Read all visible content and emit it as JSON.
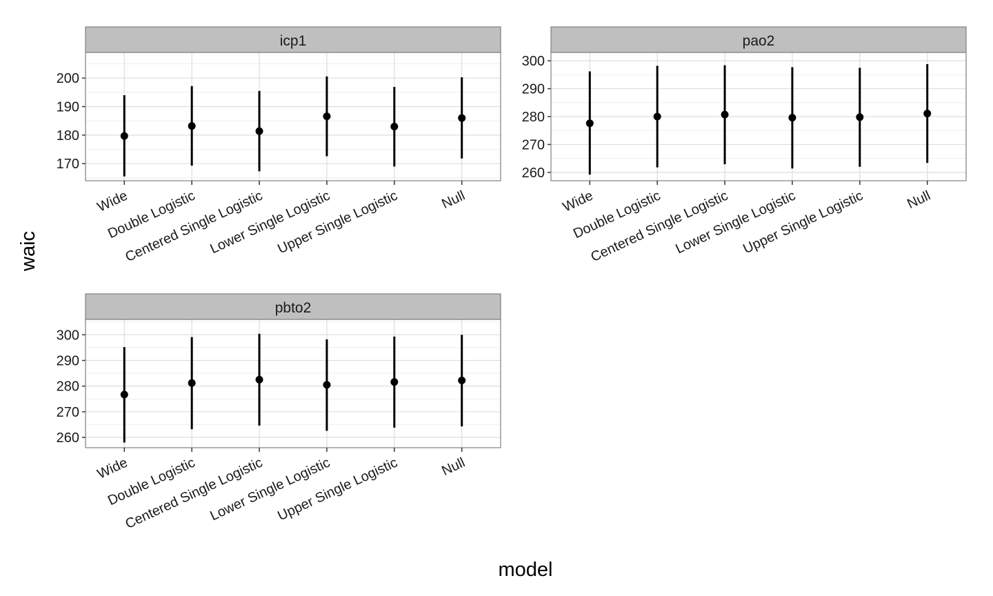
{
  "colors": {
    "panel_background": "#ffffff",
    "grid_major": "#dddddd",
    "grid_minor": "#eeeeee",
    "panel_border": "#7f7f7f",
    "strip_background": "#bfbfbf",
    "point": "#000000"
  },
  "chart_data": {
    "type": "scatter",
    "geometry": "point-range",
    "xlabel": "model",
    "ylabel": "waic",
    "categories": [
      "Wide",
      "Double Logistic",
      "Centered Single Logistic",
      "Lower Single Logistic",
      "Upper Single Logistic",
      "Null"
    ],
    "grid": true,
    "legend": "none",
    "panels": [
      {
        "name": "icp1",
        "ylim": [
          164,
          209
        ],
        "yticks": [
          170,
          180,
          190,
          200
        ],
        "points": [
          {
            "category": "Wide",
            "y": 179.7,
            "lower": 165.5,
            "upper": 194.0
          },
          {
            "category": "Double Logistic",
            "y": 183.2,
            "lower": 169.3,
            "upper": 197.2
          },
          {
            "category": "Centered Single Logistic",
            "y": 181.4,
            "lower": 167.3,
            "upper": 195.5
          },
          {
            "category": "Lower Single Logistic",
            "y": 186.6,
            "lower": 172.6,
            "upper": 200.6
          },
          {
            "category": "Upper Single Logistic",
            "y": 183.0,
            "lower": 169.0,
            "upper": 196.9
          },
          {
            "category": "Null",
            "y": 186.0,
            "lower": 171.8,
            "upper": 200.3
          }
        ]
      },
      {
        "name": "pao2",
        "ylim": [
          257,
          303
        ],
        "yticks": [
          260,
          270,
          280,
          290,
          300
        ],
        "points": [
          {
            "category": "Wide",
            "y": 277.6,
            "lower": 259.2,
            "upper": 296.2
          },
          {
            "category": "Double Logistic",
            "y": 280.0,
            "lower": 261.8,
            "upper": 298.2
          },
          {
            "category": "Centered Single Logistic",
            "y": 280.7,
            "lower": 262.9,
            "upper": 298.4
          },
          {
            "category": "Lower Single Logistic",
            "y": 279.6,
            "lower": 261.4,
            "upper": 297.7
          },
          {
            "category": "Upper Single Logistic",
            "y": 279.8,
            "lower": 262.0,
            "upper": 297.5
          },
          {
            "category": "Null",
            "y": 281.1,
            "lower": 263.4,
            "upper": 298.8
          }
        ]
      },
      {
        "name": "pbto2",
        "ylim": [
          256,
          306
        ],
        "yticks": [
          260,
          270,
          280,
          290,
          300
        ],
        "points": [
          {
            "category": "Wide",
            "y": 276.7,
            "lower": 258.0,
            "upper": 295.2
          },
          {
            "category": "Double Logistic",
            "y": 281.2,
            "lower": 263.2,
            "upper": 299.1
          },
          {
            "category": "Centered Single Logistic",
            "y": 282.5,
            "lower": 264.6,
            "upper": 300.4
          },
          {
            "category": "Lower Single Logistic",
            "y": 280.5,
            "lower": 262.6,
            "upper": 298.2
          },
          {
            "category": "Upper Single Logistic",
            "y": 281.6,
            "lower": 263.8,
            "upper": 299.3
          },
          {
            "category": "Null",
            "y": 282.2,
            "lower": 264.3,
            "upper": 300.0
          }
        ]
      }
    ]
  }
}
